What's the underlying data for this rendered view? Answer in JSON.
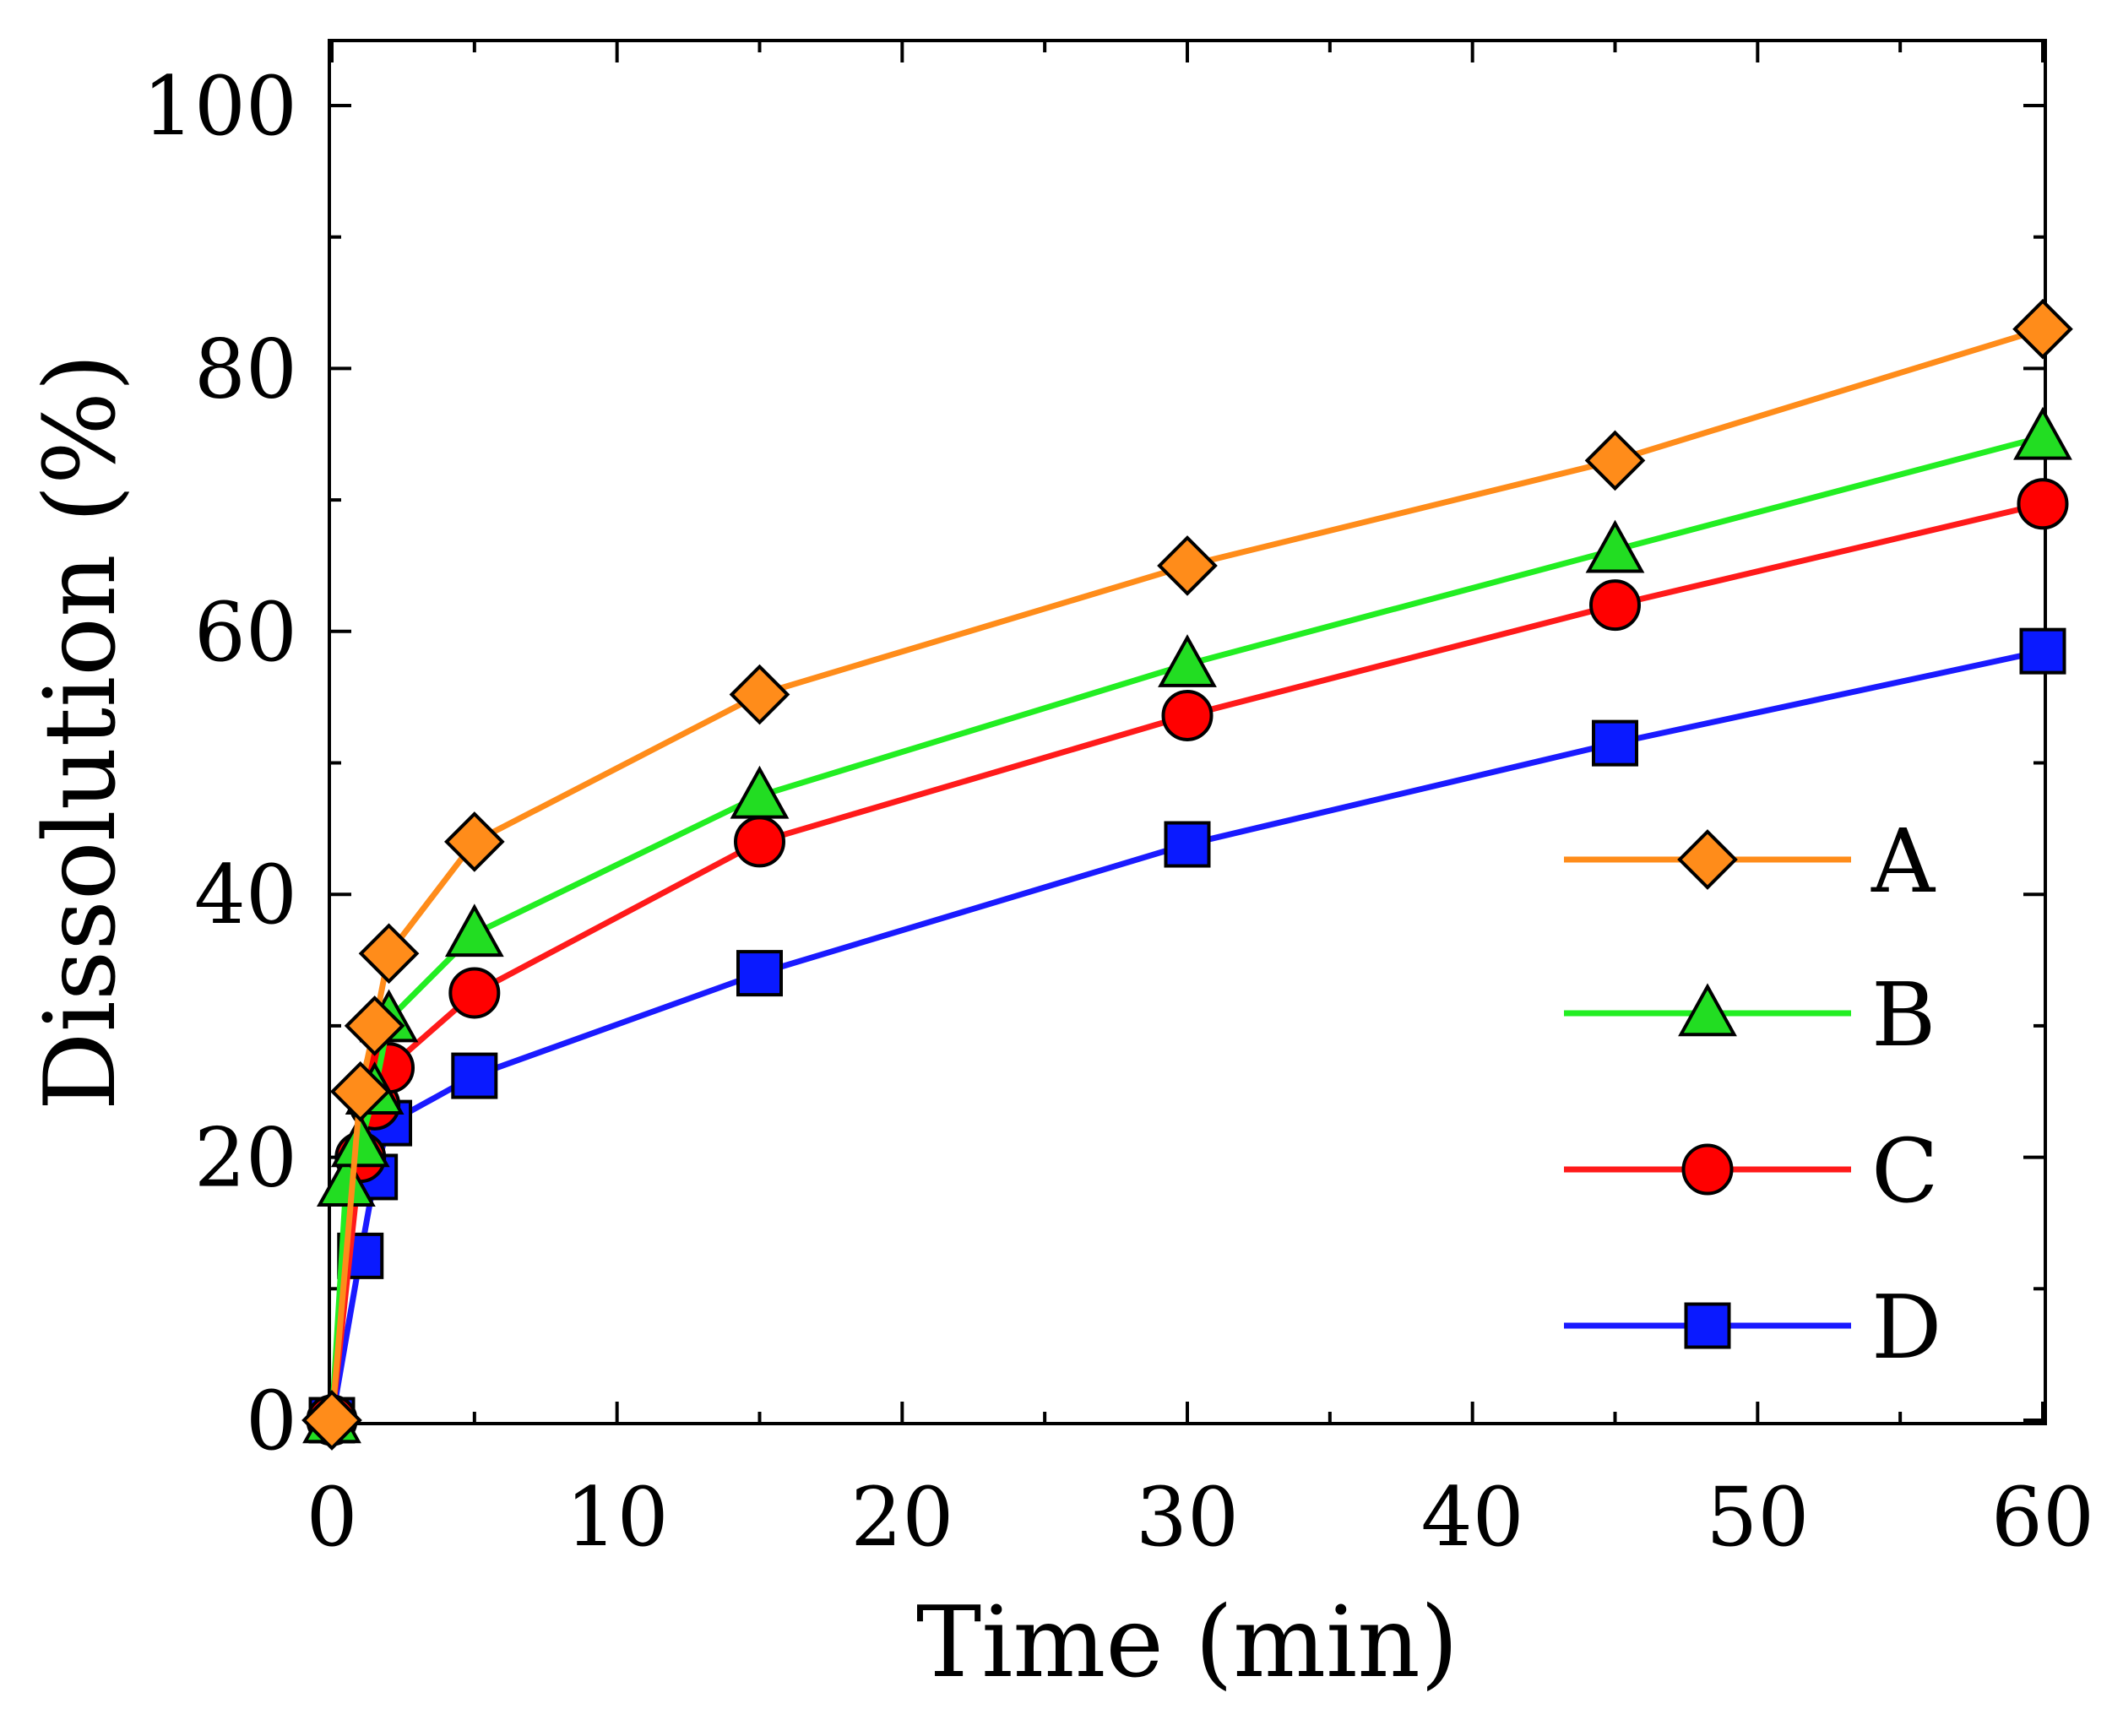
{
  "chart_data": {
    "type": "line",
    "title": "",
    "xlabel": "Time (min)",
    "ylabel": "Dissolution (%)",
    "xlim": [
      0,
      60
    ],
    "ylim": [
      0,
      100
    ],
    "xticks": [
      0,
      10,
      20,
      30,
      40,
      50,
      60
    ],
    "xtick_labels": [
      "0",
      "10",
      "20",
      "30",
      "40",
      "50",
      "60"
    ],
    "yticks": [
      0,
      20,
      40,
      60,
      80,
      100
    ],
    "ytick_labels": [
      "0",
      "20",
      "40",
      "60",
      "80",
      "100"
    ],
    "grid": false,
    "legend_position": "right",
    "series": [
      {
        "name": "A",
        "color": "#ff8c1a",
        "marker": "diamond",
        "marker_color": "#ff8c1a",
        "x": [
          0,
          1,
          1.5,
          2,
          5,
          15,
          30,
          45,
          60
        ],
        "values": [
          0,
          25,
          30,
          35.5,
          44,
          55.2,
          65,
          73,
          83
        ]
      },
      {
        "name": "B",
        "color": "#22ee22",
        "marker": "triangle",
        "marker_color": "#22dd22",
        "x": [
          0,
          0.5,
          1,
          1.5,
          2,
          5,
          15,
          30,
          45,
          60
        ],
        "values": [
          0,
          18,
          21,
          25,
          30.5,
          37,
          47.5,
          57.5,
          66.2,
          74.8
        ]
      },
      {
        "name": "C",
        "color": "#ff1a1a",
        "marker": "circle",
        "marker_color": "#ff0000",
        "x": [
          0,
          1,
          1.5,
          2,
          5,
          15,
          30,
          45,
          60
        ],
        "values": [
          0,
          20,
          24,
          26.8,
          32.5,
          44,
          53.6,
          62,
          69.7
        ]
      },
      {
        "name": "D",
        "color": "#1a1aff",
        "marker": "square",
        "marker_color": "#0a1aff",
        "x": [
          0,
          1,
          1.5,
          2,
          5,
          15,
          30,
          45,
          60
        ],
        "values": [
          0,
          12.5,
          18.5,
          22.6,
          26.2,
          34,
          43.8,
          51.5,
          58.5
        ]
      }
    ]
  }
}
